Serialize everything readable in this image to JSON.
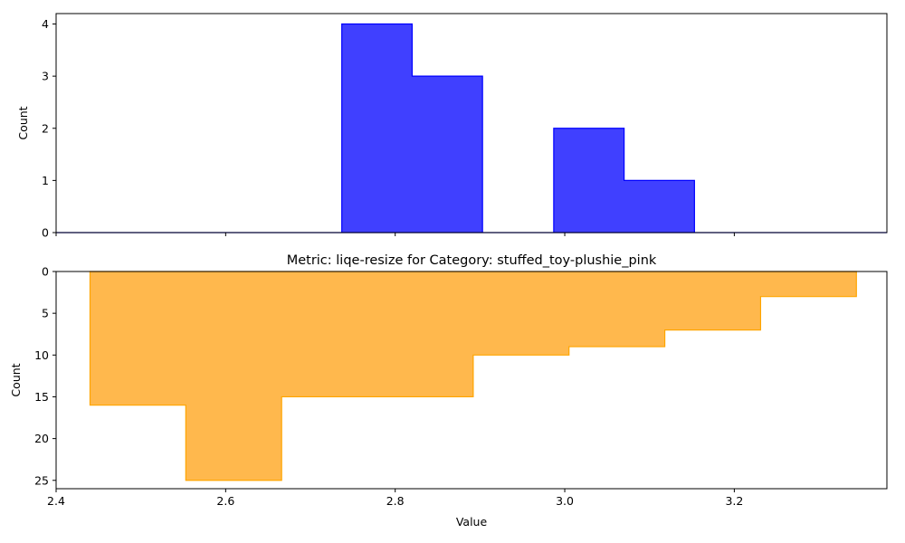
{
  "chart_data": [
    {
      "type": "bar",
      "subtype": "histogram-step-filled",
      "title": "",
      "xlabel": "",
      "ylabel": "Count",
      "xlim": [
        2.4,
        3.38
      ],
      "ylim": [
        0,
        4.2
      ],
      "y_inverted": false,
      "color": "#0000ff",
      "edge_color": "#0000ff",
      "bins": [
        {
          "x0": 2.4,
          "x1": 2.737,
          "count": 0
        },
        {
          "x0": 2.737,
          "x1": 2.82,
          "count": 4
        },
        {
          "x0": 2.82,
          "x1": 2.903,
          "count": 3
        },
        {
          "x0": 2.903,
          "x1": 2.987,
          "count": 0
        },
        {
          "x0": 2.987,
          "x1": 3.07,
          "count": 2
        },
        {
          "x0": 3.07,
          "x1": 3.153,
          "count": 1
        },
        {
          "x0": 3.153,
          "x1": 3.38,
          "count": 0
        }
      ],
      "xticks": [
        2.4,
        2.6,
        2.8,
        3.0,
        3.2
      ],
      "xtick_labels_shown": false,
      "yticks": [
        0,
        1,
        2,
        3,
        4
      ],
      "ytick_labels": [
        "0",
        "1",
        "2",
        "3",
        "4"
      ]
    },
    {
      "type": "bar",
      "subtype": "histogram-step-filled",
      "title": "Metric: liqe-resize for Category: stuffed_toy-plushie_pink",
      "xlabel": "Value",
      "ylabel": "Count",
      "xlim": [
        2.4,
        3.38
      ],
      "ylim": [
        0,
        26
      ],
      "y_inverted": true,
      "color": "#ffb84d",
      "edge_color": "#ffa500",
      "bins": [
        {
          "x0": 2.44,
          "x1": 2.553,
          "count": 16
        },
        {
          "x0": 2.553,
          "x1": 2.666,
          "count": 25
        },
        {
          "x0": 2.666,
          "x1": 2.779,
          "count": 15
        },
        {
          "x0": 2.779,
          "x1": 2.892,
          "count": 15
        },
        {
          "x0": 2.892,
          "x1": 3.005,
          "count": 10
        },
        {
          "x0": 3.005,
          "x1": 3.118,
          "count": 9
        },
        {
          "x0": 3.118,
          "x1": 3.231,
          "count": 7
        },
        {
          "x0": 3.231,
          "x1": 3.344,
          "count": 3
        }
      ],
      "xticks": [
        2.4,
        2.6,
        2.8,
        3.0,
        3.2
      ],
      "xtick_labels": [
        "2.4",
        "2.6",
        "2.8",
        "3.0",
        "3.2"
      ],
      "yticks": [
        0,
        5,
        10,
        15,
        20,
        25
      ],
      "ytick_labels": [
        "0",
        "5",
        "10",
        "15",
        "20",
        "25"
      ]
    }
  ]
}
